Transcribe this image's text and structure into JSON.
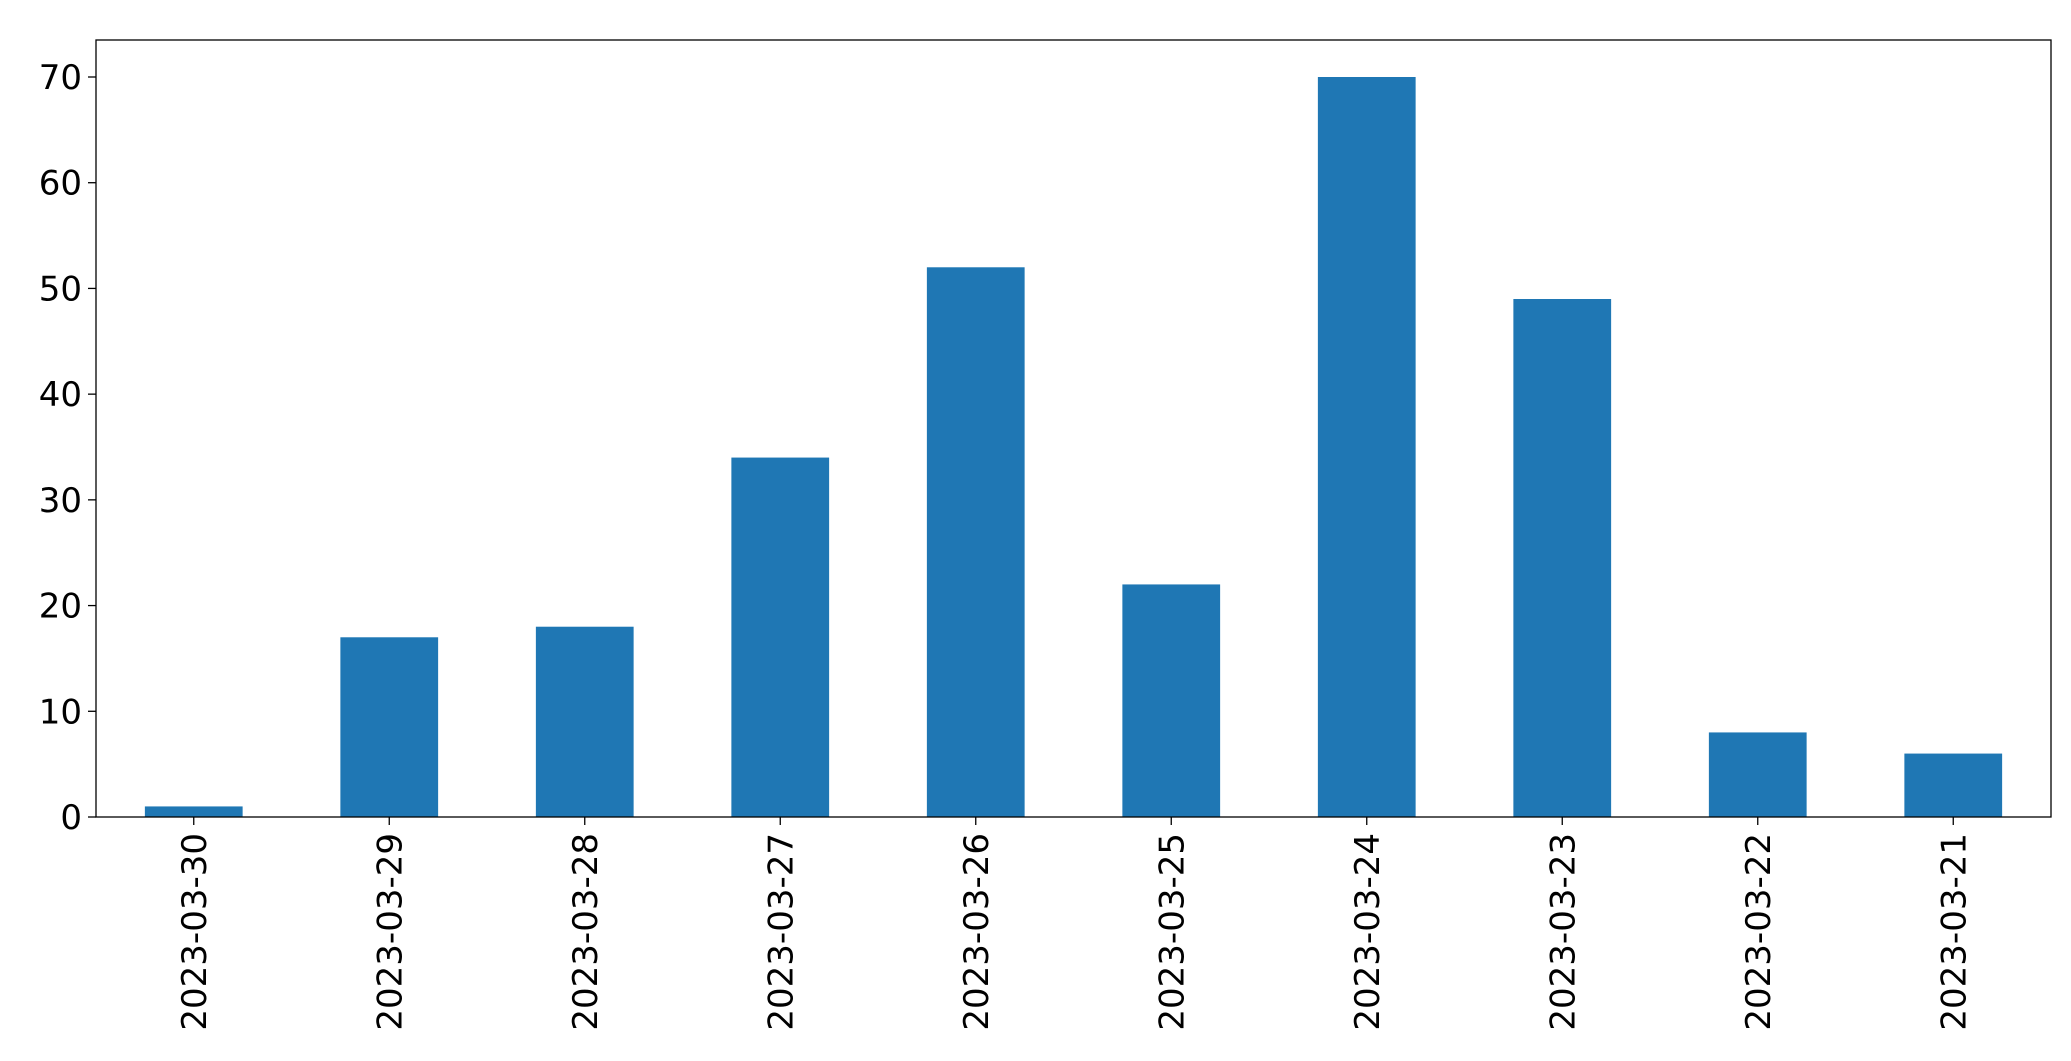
{
  "chart_data": {
    "type": "bar",
    "categories": [
      "2023-03-30",
      "2023-03-29",
      "2023-03-28",
      "2023-03-27",
      "2023-03-26",
      "2023-03-25",
      "2023-03-24",
      "2023-03-23",
      "2023-03-22",
      "2023-03-21"
    ],
    "values": [
      1,
      17,
      18,
      34,
      52,
      22,
      70,
      49,
      8,
      6
    ],
    "color": "#1f77b4",
    "ylim": [
      0,
      73.5
    ],
    "yticks": [
      0,
      10,
      20,
      30,
      40,
      50,
      60,
      70
    ],
    "grid": false
  }
}
